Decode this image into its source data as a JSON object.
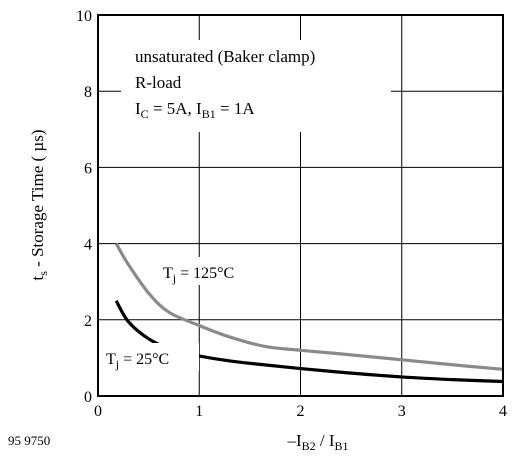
{
  "chart_data": {
    "type": "line",
    "xlabel": "–I",
    "xlabel_sub1": "B2",
    "xlabel_mid": " / I",
    "xlabel_sub2": "B1",
    "ylabel": "t",
    "ylabel_sub": "s",
    "ylabel_rest": " - Storage Time ( µs)",
    "xlim": [
      0,
      4
    ],
    "ylim": [
      0,
      10
    ],
    "xticks": [
      "0",
      "1",
      "2",
      "3",
      "4"
    ],
    "yticks": [
      "0",
      "2",
      "4",
      "6",
      "8",
      "10"
    ],
    "grid": true,
    "figure_id": "95 9750",
    "conditions": {
      "line1": "unsaturated (Baker clamp)",
      "line2": "R-load",
      "line3_a": "I",
      "line3_a_sub": "C",
      "line3_b": " = 5A, I",
      "line3_b_sub": "B1",
      "line3_c": " = 1A"
    },
    "series": [
      {
        "label_main": "T",
        "label_sub": "j",
        "label_rest": " = 125°C",
        "color": "#8a8a8a",
        "x": [
          0.18,
          0.3,
          0.5,
          0.7,
          1.0,
          1.3,
          1.65,
          2.0,
          2.5,
          3.0,
          3.5,
          4.0
        ],
        "y": [
          4.0,
          3.45,
          2.7,
          2.2,
          1.85,
          1.55,
          1.3,
          1.2,
          1.08,
          0.95,
          0.82,
          0.7
        ]
      },
      {
        "label_main": "T",
        "label_sub": "j",
        "label_rest": " = 25°C",
        "color": "#000000",
        "x": [
          0.18,
          0.3,
          0.5,
          0.7,
          1.0,
          1.3,
          1.6,
          2.0,
          2.5,
          3.0,
          3.5,
          4.0
        ],
        "y": [
          2.5,
          1.95,
          1.5,
          1.25,
          1.05,
          0.92,
          0.83,
          0.72,
          0.6,
          0.5,
          0.43,
          0.38
        ]
      }
    ]
  }
}
